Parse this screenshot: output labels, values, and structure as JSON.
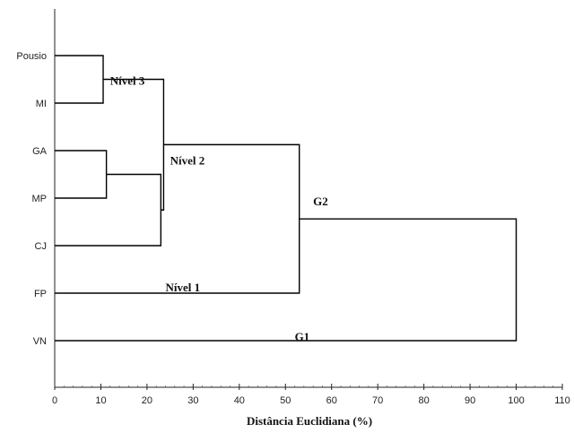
{
  "chart_data": {
    "type": "dendrogram",
    "xlabel": "Distância Euclidiana (%)",
    "ylabel": "",
    "title": "",
    "xlim": [
      0,
      110
    ],
    "xticks": [
      0,
      10,
      20,
      30,
      40,
      50,
      60,
      70,
      80,
      90,
      100,
      110
    ],
    "leaves": [
      "Pousio",
      "MI",
      "GA",
      "MP",
      "CJ",
      "FP",
      "VN"
    ],
    "merges": [
      {
        "id": "c1",
        "children": [
          "Pousio",
          "MI"
        ],
        "height": 10.5
      },
      {
        "id": "c2",
        "children": [
          "GA",
          "MP"
        ],
        "height": 11.2
      },
      {
        "id": "c3",
        "children": [
          "c2",
          "CJ"
        ],
        "height": 23.0
      },
      {
        "id": "c4",
        "children": [
          "c1",
          "c3"
        ],
        "height": 23.6
      },
      {
        "id": "c5",
        "children": [
          "c4",
          "FP"
        ],
        "height": 53.0
      },
      {
        "id": "c6",
        "children": [
          "c5",
          "VN"
        ],
        "height": 100.0
      }
    ],
    "annotations": [
      {
        "text": "Nível 3",
        "x": 12,
        "near": "c1"
      },
      {
        "text": "Nível 2",
        "x": 25,
        "near": "c4"
      },
      {
        "text": "Nível 1",
        "x": 24,
        "near": "FP"
      },
      {
        "text": "G2",
        "x": 56,
        "near": "c5"
      },
      {
        "text": "G1",
        "x": 52,
        "near": "VN"
      }
    ]
  }
}
